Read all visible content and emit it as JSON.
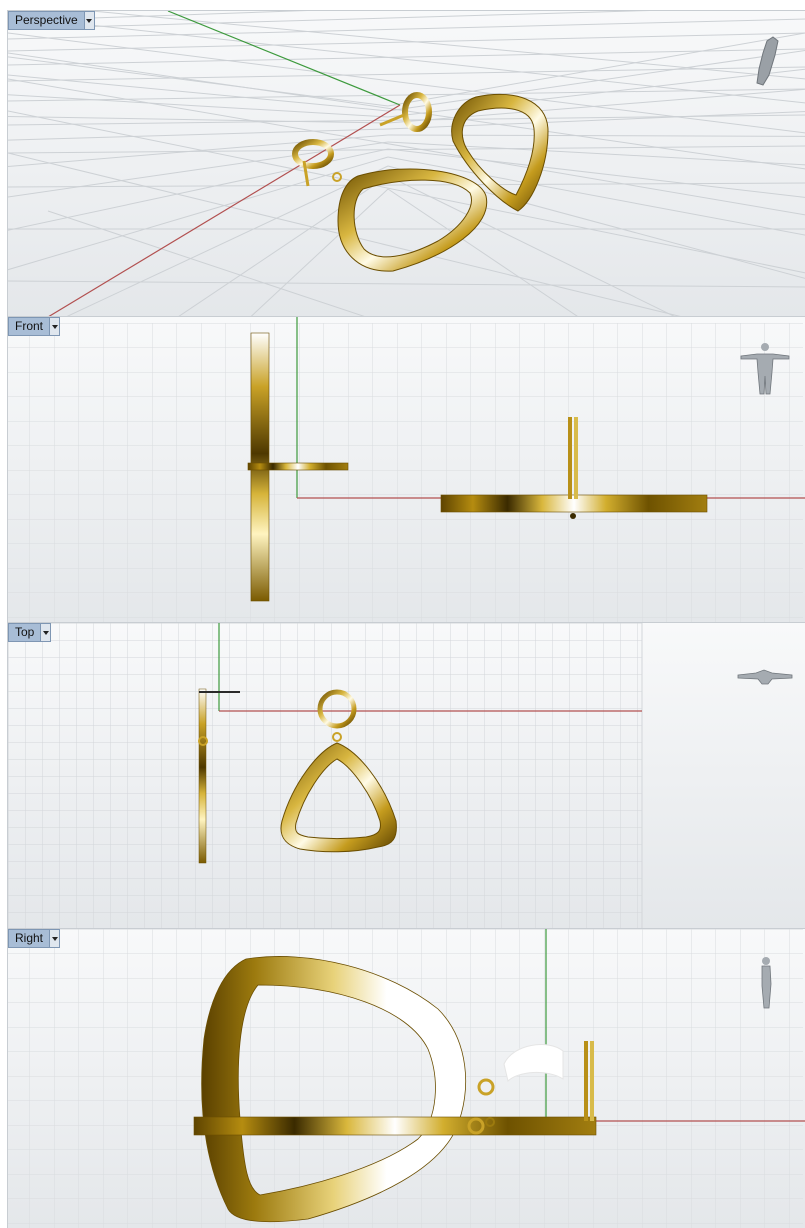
{
  "viewports": {
    "perspective": {
      "label": "Perspective",
      "figure_icon": "human-figure-icon"
    },
    "front": {
      "label": "Front",
      "figure_icon": "human-figure-icon"
    },
    "top": {
      "label": "Top",
      "figure_icon": "human-figure-icon"
    },
    "right": {
      "label": "Right",
      "figure_icon": "human-figure-icon"
    }
  },
  "colors": {
    "grid": "#d9dcdf",
    "grid_bg": "#f2f4f6",
    "x_axis": "#b25050",
    "y_axis": "#3d9a3d",
    "gold_dark": "#7a5a00",
    "gold_mid": "#c9a227",
    "gold_light": "#fff6c8"
  }
}
